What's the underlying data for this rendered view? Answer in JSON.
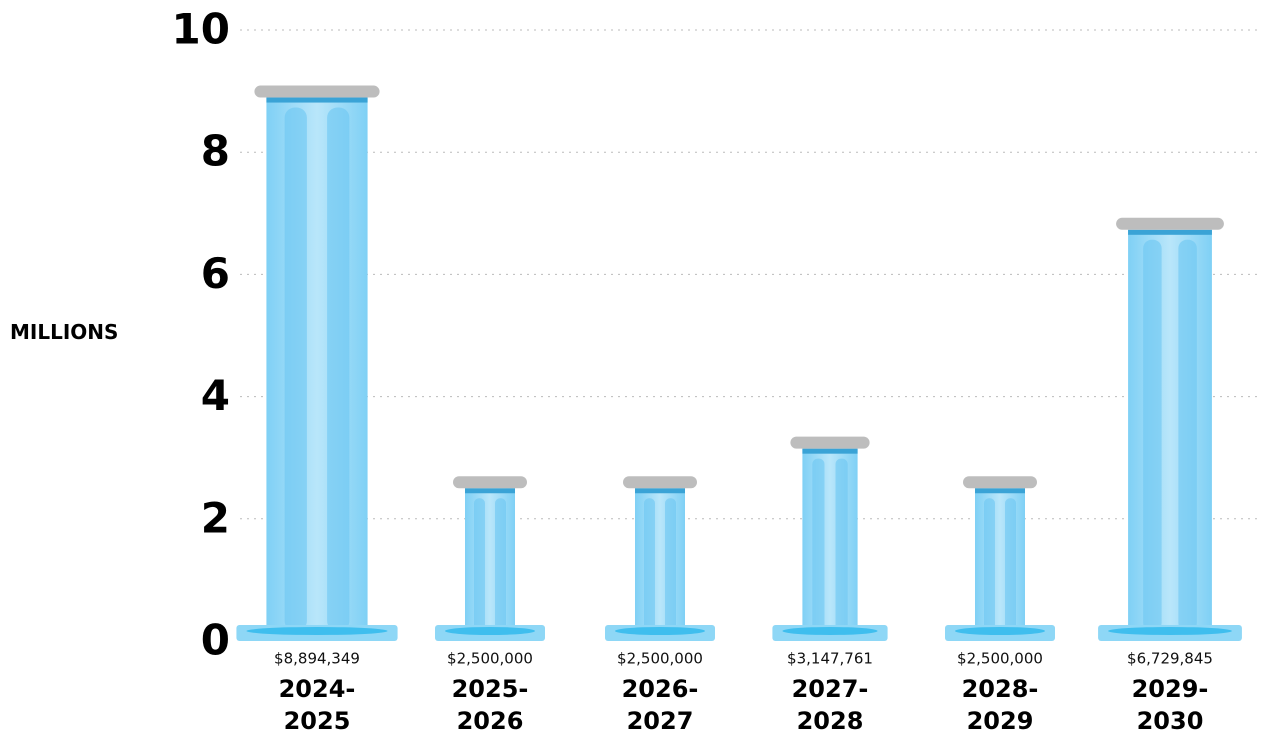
{
  "chart_data": {
    "type": "bar",
    "y_label": "MILLIONS",
    "categories": [
      "2024-2025",
      "2025-2026",
      "2026-2027",
      "2027-2028",
      "2028-2029",
      "2029-2030"
    ],
    "values": [
      8.894349,
      2.5,
      2.5,
      3.147761,
      2.5,
      6.729845
    ],
    "value_labels": [
      "$8,894,349",
      "$2,500,000",
      "$2,500,000",
      "$3,147,761",
      "$2,500,000",
      "$6,729,845"
    ],
    "color": "#6cc6f1",
    "ylim": [
      0,
      10
    ],
    "yticks": [
      0,
      2,
      4,
      6,
      8,
      10
    ],
    "grid": true
  }
}
